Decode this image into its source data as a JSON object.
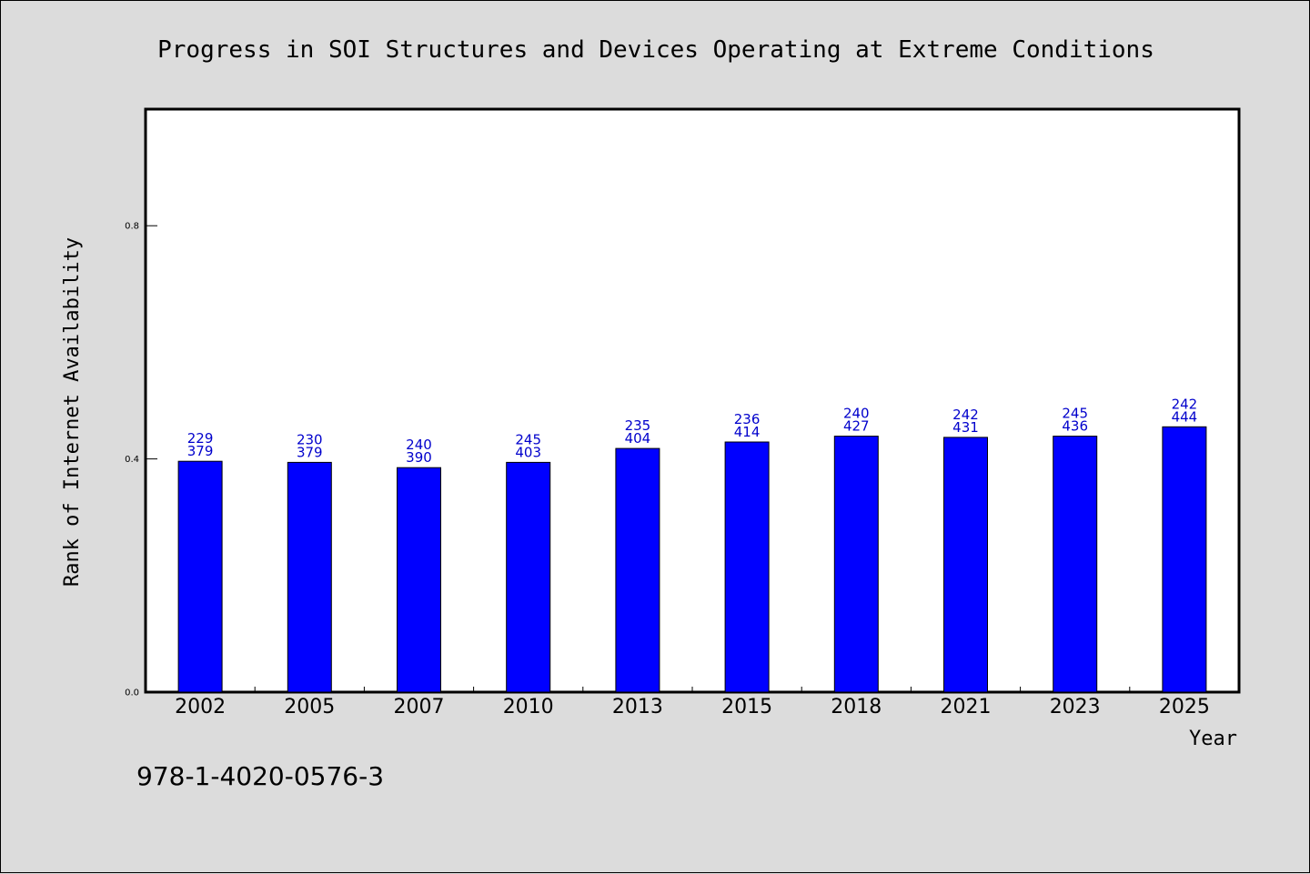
{
  "colors": {
    "background": "#dcdcdc",
    "plot_background": "#ffffff",
    "bar_fill": "#0000ff",
    "bar_stroke": "#000000",
    "data_label": "#0000cc"
  },
  "footer": {
    "code": "978-1-4020-0576-3"
  },
  "chart_data": {
    "type": "bar",
    "title": "Progress in SOI Structures and Devices Operating at Extreme Conditions",
    "xlabel": "Year",
    "ylabel": "Rank of Internet Availability",
    "categories": [
      "2002",
      "2005",
      "2007",
      "2010",
      "2013",
      "2015",
      "2018",
      "2021",
      "2023",
      "2025"
    ],
    "values": [
      0.396,
      0.394,
      0.385,
      0.394,
      0.418,
      0.429,
      0.439,
      0.437,
      0.439,
      0.455
    ],
    "data_labels": [
      [
        "229",
        "379"
      ],
      [
        "230",
        "379"
      ],
      [
        "240",
        "390"
      ],
      [
        "245",
        "403"
      ],
      [
        "235",
        "404"
      ],
      [
        "236",
        "414"
      ],
      [
        "240",
        "427"
      ],
      [
        "242",
        "431"
      ],
      [
        "245",
        "436"
      ],
      [
        "242",
        "444"
      ]
    ],
    "ylim": [
      0,
      1.0
    ],
    "yticks": [
      "0.0",
      "0.4",
      "0.8"
    ],
    "grid": false,
    "legend": "none"
  }
}
